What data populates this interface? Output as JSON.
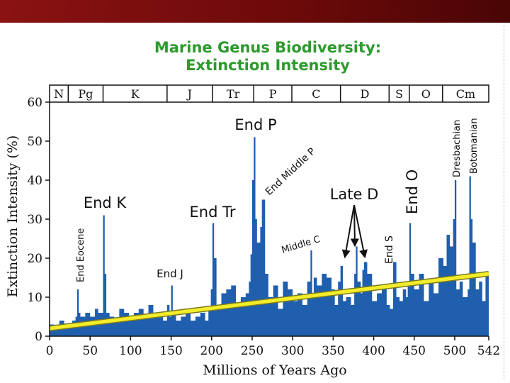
{
  "chart_data": {
    "type": "area",
    "title": "Marine Genus Biodiversity:",
    "subtitle": "Extinction Intensity",
    "xlabel": "Millions of Years Ago",
    "ylabel": "Extinction Intensity (%)",
    "xlim": [
      0,
      542
    ],
    "ylim": [
      0,
      60
    ],
    "x_ticks": [
      0,
      50,
      100,
      150,
      200,
      250,
      300,
      350,
      400,
      450,
      500,
      542
    ],
    "y_ticks": [
      0,
      10,
      20,
      30,
      40,
      50,
      60
    ],
    "fill_color": "#1f5fae",
    "trend_color": "#f2ec2a",
    "periods": [
      {
        "label": "N",
        "start": 0,
        "end": 23
      },
      {
        "label": "Pg",
        "start": 23,
        "end": 66
      },
      {
        "label": "K",
        "start": 66,
        "end": 145
      },
      {
        "label": "J",
        "start": 145,
        "end": 201
      },
      {
        "label": "Tr",
        "start": 201,
        "end": 252
      },
      {
        "label": "P",
        "start": 252,
        "end": 299
      },
      {
        "label": "C",
        "start": 299,
        "end": 359
      },
      {
        "label": "D",
        "start": 359,
        "end": 419
      },
      {
        "label": "S",
        "start": 419,
        "end": 444
      },
      {
        "label": "O",
        "start": 444,
        "end": 485
      },
      {
        "label": "Cm",
        "start": 485,
        "end": 542
      }
    ],
    "x": [
      0,
      6,
      12,
      18,
      24,
      28,
      32,
      34,
      36,
      38,
      44,
      50,
      56,
      60,
      64,
      66,
      68,
      70,
      74,
      80,
      86,
      92,
      98,
      104,
      110,
      116,
      122,
      128,
      134,
      140,
      145,
      148,
      150,
      152,
      156,
      162,
      168,
      174,
      180,
      186,
      192,
      196,
      199,
      201,
      203,
      206,
      212,
      218,
      224,
      230,
      236,
      242,
      246,
      248,
      250,
      252,
      254,
      256,
      260,
      262,
      264,
      266,
      270,
      276,
      282,
      288,
      294,
      300,
      306,
      312,
      318,
      322,
      324,
      326,
      330,
      336,
      342,
      348,
      352,
      356,
      359,
      362,
      366,
      372,
      376,
      378,
      380,
      384,
      386,
      388,
      392,
      398,
      404,
      410,
      416,
      420,
      424,
      428,
      432,
      436,
      440,
      442,
      444,
      446,
      450,
      456,
      462,
      468,
      474,
      480,
      486,
      490,
      494,
      498,
      500,
      502,
      506,
      510,
      516,
      518,
      520,
      522,
      526,
      530,
      534,
      538,
      542
    ],
    "values": [
      3,
      2,
      4,
      3,
      3,
      4,
      5,
      12,
      6,
      5,
      6,
      5,
      7,
      6,
      6,
      31,
      16,
      6,
      5,
      4,
      7,
      6,
      4,
      6,
      7,
      5,
      8,
      6,
      5,
      4,
      8,
      5,
      13,
      6,
      4,
      5,
      6,
      4,
      5,
      6,
      4,
      7,
      12,
      29,
      20,
      8,
      11,
      12,
      13,
      8,
      10,
      11,
      14,
      21,
      40,
      51,
      30,
      24,
      28,
      35,
      35,
      16,
      10,
      13,
      7,
      14,
      12,
      9,
      11,
      8,
      14,
      22,
      10,
      15,
      13,
      16,
      15,
      12,
      8,
      14,
      18,
      9,
      10,
      8,
      16,
      23,
      14,
      11,
      17,
      19,
      16,
      9,
      11,
      12,
      8,
      7,
      19,
      10,
      9,
      12,
      10,
      14,
      29,
      16,
      12,
      16,
      9,
      14,
      11,
      20,
      18,
      26,
      23,
      30,
      40,
      12,
      14,
      10,
      12,
      41,
      30,
      24,
      12,
      14,
      9,
      16,
      8
    ],
    "trend": {
      "x0": 0,
      "y0": 2,
      "x1": 542,
      "y1": 16
    },
    "annotations": {
      "end_k": "End K",
      "end_eocene": "End Eocene",
      "end_j": "End J",
      "end_tr": "End Tr",
      "end_p": "End P",
      "end_middle_p": "End Middle P",
      "middle_c": "Middle C",
      "late_d": "Late D",
      "end_s": "End S",
      "end_o": "End O",
      "dresbachian": "Dresbachian",
      "botomanian": "Botomanian"
    }
  }
}
